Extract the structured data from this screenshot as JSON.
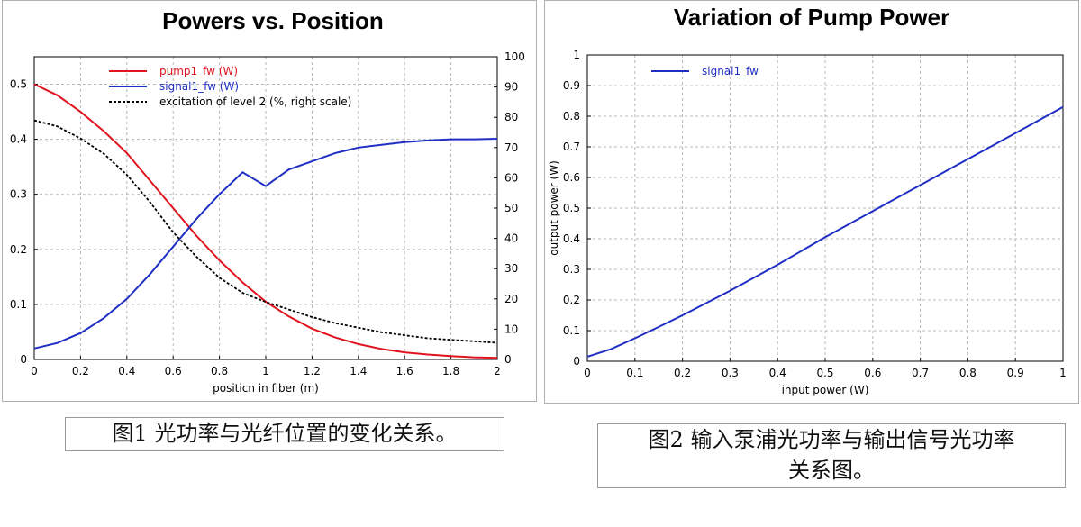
{
  "captions": {
    "fig1": "图1 光功率与光纤位置的变化关系。",
    "fig2": "图2 输入泵浦光功率与输出信号光功率关系图。"
  },
  "colors": {
    "pump": "#e0141e",
    "signal": "#1f2fc4",
    "excitation": "#000000"
  },
  "chart_data": [
    {
      "type": "line",
      "title": "Powers vs. Position",
      "xlabel": "positicn in fiber (m)",
      "ylabel": "",
      "ylabel_right": "",
      "xlim": [
        0,
        2
      ],
      "ylim": [
        0,
        0.55
      ],
      "ylim_right": [
        0,
        100
      ],
      "x_ticks": [
        "0",
        "0.2",
        "0.4",
        "0.6",
        "0.8",
        "1",
        "1.2",
        "1.4",
        "1.6",
        "1.8",
        "2"
      ],
      "y_ticks": [
        "0",
        "0.1",
        "0.2",
        "0.3",
        "0.4",
        "0.5"
      ],
      "y_right_ticks": [
        "0",
        "10",
        "20",
        "30",
        "40",
        "50",
        "60",
        "70",
        "80",
        "90",
        "100"
      ],
      "grid": true,
      "legend_position": "top-left",
      "series": [
        {
          "name": "pump1_fw (W)",
          "axis": "left",
          "color": "#e0141e",
          "style": "solid",
          "x": [
            0,
            0.1,
            0.2,
            0.3,
            0.4,
            0.5,
            0.6,
            0.7,
            0.8,
            0.9,
            1.0,
            1.1,
            1.2,
            1.3,
            1.4,
            1.5,
            1.6,
            1.7,
            1.8,
            1.9,
            2.0
          ],
          "values": [
            0.5,
            0.48,
            0.45,
            0.415,
            0.375,
            0.325,
            0.275,
            0.225,
            0.18,
            0.14,
            0.105,
            0.078,
            0.056,
            0.04,
            0.028,
            0.019,
            0.013,
            0.009,
            0.006,
            0.004,
            0.003
          ]
        },
        {
          "name": "signal1_fw (W)",
          "axis": "left",
          "color": "#1f2fc4",
          "style": "solid",
          "x": [
            0,
            0.1,
            0.2,
            0.3,
            0.4,
            0.5,
            0.6,
            0.7,
            0.8,
            0.9,
            1.0,
            1.1,
            1.2,
            1.3,
            1.4,
            1.5,
            1.6,
            1.7,
            1.8,
            1.9,
            2.0
          ],
          "values": [
            0.02,
            0.03,
            0.048,
            0.075,
            0.11,
            0.155,
            0.205,
            0.255,
            0.3,
            0.34,
            0.315,
            0.345,
            0.36,
            0.375,
            0.385,
            0.39,
            0.395,
            0.398,
            0.4,
            0.4,
            0.401
          ]
        },
        {
          "name": "excitation of level 2 (%, right scale)",
          "axis": "right",
          "color": "#000000",
          "style": "dashed",
          "x": [
            0,
            0.1,
            0.2,
            0.3,
            0.4,
            0.5,
            0.6,
            0.7,
            0.8,
            0.9,
            1.0,
            1.1,
            1.2,
            1.3,
            1.4,
            1.5,
            1.6,
            1.7,
            1.8,
            1.9,
            2.0
          ],
          "values": [
            79,
            77,
            73,
            68,
            61,
            52,
            42,
            34,
            27,
            22,
            19,
            16.5,
            14,
            12,
            10.5,
            9,
            8,
            7,
            6.5,
            6,
            5.5
          ]
        }
      ]
    },
    {
      "type": "line",
      "title": "Variation of Pump Power",
      "xlabel": "input power (W)",
      "ylabel": "output power (W)",
      "xlim": [
        0,
        1
      ],
      "ylim": [
        0,
        1
      ],
      "x_ticks": [
        "0",
        "0.1",
        "0.2",
        "0.3",
        "0.4",
        "0.5",
        "0.6",
        "0.7",
        "0.8",
        "0.9",
        "1"
      ],
      "y_ticks": [
        "0",
        "0.1",
        "0.2",
        "0.3",
        "0.4",
        "0.5",
        "0.6",
        "0.7",
        "0.8",
        "0.9",
        "1"
      ],
      "grid": true,
      "legend_position": "top-left",
      "series": [
        {
          "name": "signal1_fw",
          "color": "#1f2fc4",
          "style": "solid",
          "x": [
            0,
            0.05,
            0.1,
            0.15,
            0.2,
            0.3,
            0.4,
            0.5,
            0.6,
            0.7,
            0.8,
            0.9,
            1.0
          ],
          "values": [
            0.015,
            0.04,
            0.075,
            0.112,
            0.15,
            0.23,
            0.315,
            0.405,
            0.49,
            0.575,
            0.66,
            0.745,
            0.83
          ]
        }
      ]
    }
  ]
}
